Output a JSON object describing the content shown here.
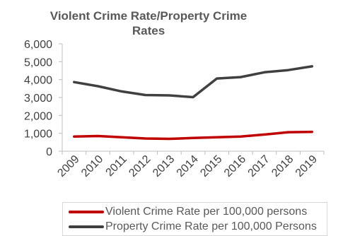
{
  "chart_data": {
    "type": "line",
    "title": "Violent Crime Rate/Property Crime Rates",
    "categories": [
      "2009",
      "2010",
      "2011",
      "2012",
      "2013",
      "2014",
      "2015",
      "2016",
      "2017",
      "2018",
      "2019"
    ],
    "series": [
      {
        "name": "Violent Crime Rate per 100,000 persons",
        "color": "#c00000",
        "values": [
          820,
          850,
          780,
          710,
          690,
          740,
          780,
          820,
          930,
          1060,
          1080
        ]
      },
      {
        "name": "Property Crime Rate per 100,000 Persons",
        "color": "#404040",
        "values": [
          3860,
          3630,
          3340,
          3140,
          3120,
          3020,
          4060,
          4140,
          4410,
          4530,
          4740
        ]
      }
    ],
    "ylim": [
      0,
      6000
    ],
    "yticks": [
      0,
      1000,
      2000,
      3000,
      4000,
      5000,
      6000
    ],
    "ytick_labels": [
      "0",
      "1,000",
      "2,000",
      "3,000",
      "4,000",
      "5,000",
      "6,000"
    ],
    "grid": false,
    "legend_position": "bottom"
  }
}
